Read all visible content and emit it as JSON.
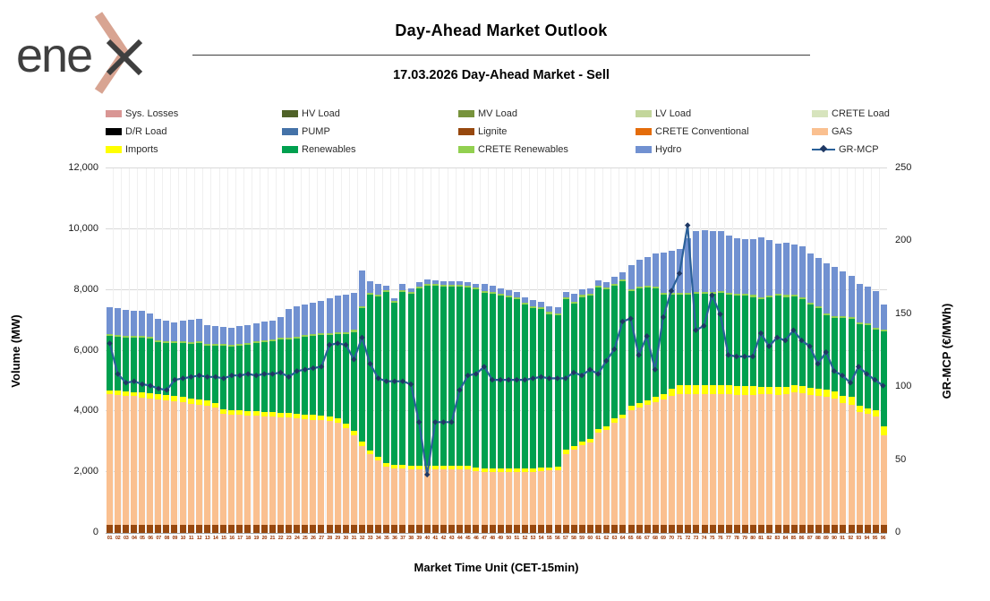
{
  "logo": {
    "text": "ene",
    "alt": "enex"
  },
  "header": {
    "title": "Day-Ahead Market Outlook",
    "subtitle": "17.03.2026  Day-Ahead Market - Sell"
  },
  "legend": [
    {
      "label": "Sys. Losses",
      "color": "#d99694",
      "type": "box"
    },
    {
      "label": "HV Load",
      "color": "#4f6228",
      "type": "box"
    },
    {
      "label": "MV Load",
      "color": "#77933c",
      "type": "box"
    },
    {
      "label": "LV Load",
      "color": "#c3d69b",
      "type": "box"
    },
    {
      "label": "CRETE Load",
      "color": "#d7e4bd",
      "type": "box"
    },
    {
      "label": "D/R Load",
      "color": "#000000",
      "type": "box"
    },
    {
      "label": "PUMP",
      "color": "#4472a8",
      "type": "box"
    },
    {
      "label": "Lignite",
      "color": "#97480e",
      "type": "box"
    },
    {
      "label": "CRETE Conventional",
      "color": "#e46c0a",
      "type": "box"
    },
    {
      "label": "GAS",
      "color": "#fac090",
      "type": "box"
    },
    {
      "label": "Imports",
      "color": "#ffff00",
      "type": "box"
    },
    {
      "label": "Renewables",
      "color": "#00a04f",
      "type": "box"
    },
    {
      "label": "CRETE Renewables",
      "color": "#92d050",
      "type": "box"
    },
    {
      "label": "Hydro",
      "color": "#7191d1",
      "type": "box"
    },
    {
      "label": "GR-MCP",
      "color": "#2a6099",
      "type": "line"
    }
  ],
  "axes": {
    "left": {
      "title": "Volume (MW)",
      "ticks": [
        "0",
        "2,000",
        "4,000",
        "6,000",
        "8,000",
        "10,000",
        "12,000"
      ],
      "max": 12000
    },
    "right": {
      "title": "GR-MCP (€/MWh)",
      "ticks": [
        "0",
        "50",
        "100",
        "150",
        "200",
        "250"
      ],
      "max": 250
    },
    "x": {
      "title": "Market Time Unit (CET-15min)"
    }
  },
  "chart_data": {
    "type": "stacked-bar+line",
    "ylim_left": [
      0,
      12000
    ],
    "ylim_right": [
      0,
      250
    ],
    "grid": "horizontal",
    "categories": [
      "01",
      "02",
      "03",
      "04",
      "05",
      "06",
      "07",
      "08",
      "09",
      "10",
      "11",
      "12",
      "13",
      "14",
      "15",
      "16",
      "17",
      "18",
      "19",
      "20",
      "21",
      "22",
      "23",
      "24",
      "25",
      "26",
      "27",
      "28",
      "29",
      "30",
      "31",
      "32",
      "33",
      "34",
      "35",
      "36",
      "37",
      "38",
      "39",
      "40",
      "41",
      "42",
      "43",
      "44",
      "45",
      "46",
      "47",
      "48",
      "49",
      "50",
      "51",
      "52",
      "53",
      "54",
      "55",
      "56",
      "57",
      "58",
      "59",
      "60",
      "61",
      "62",
      "63",
      "64",
      "65",
      "66",
      "67",
      "68",
      "69",
      "70",
      "71",
      "72",
      "73",
      "74",
      "75",
      "76",
      "77",
      "78",
      "79",
      "80",
      "81",
      "82",
      "83",
      "84",
      "85",
      "86",
      "87",
      "88",
      "89",
      "90",
      "91",
      "92",
      "93",
      "94",
      "95",
      "96"
    ],
    "series": [
      {
        "name": "Lignite",
        "color": "#97480e",
        "values": [
          280,
          280,
          280,
          280,
          280,
          280,
          280,
          280,
          280,
          280,
          280,
          280,
          280,
          280,
          280,
          280,
          280,
          280,
          280,
          280,
          280,
          280,
          280,
          280,
          280,
          280,
          280,
          280,
          280,
          280,
          280,
          280,
          280,
          280,
          280,
          280,
          280,
          280,
          280,
          280,
          280,
          280,
          280,
          280,
          280,
          280,
          280,
          280,
          280,
          280,
          280,
          280,
          280,
          280,
          280,
          280,
          280,
          280,
          280,
          280,
          280,
          280,
          280,
          280,
          280,
          280,
          280,
          280,
          280,
          280,
          280,
          280,
          280,
          280,
          280,
          280,
          280,
          280,
          280,
          280,
          280,
          280,
          280,
          280,
          280,
          280,
          280,
          280,
          280,
          280,
          280,
          280,
          280,
          280,
          280,
          280
        ]
      },
      {
        "name": "GAS",
        "color": "#fac090",
        "values": [
          4290,
          4260,
          4230,
          4220,
          4170,
          4140,
          4100,
          4070,
          4050,
          4030,
          3980,
          3950,
          3900,
          3840,
          3650,
          3620,
          3600,
          3580,
          3570,
          3560,
          3550,
          3530,
          3510,
          3490,
          3470,
          3450,
          3430,
          3410,
          3360,
          3160,
          2920,
          2590,
          2320,
          2110,
          1910,
          1850,
          1830,
          1820,
          1820,
          1820,
          1820,
          1820,
          1820,
          1820,
          1810,
          1760,
          1720,
          1720,
          1720,
          1720,
          1720,
          1730,
          1740,
          1750,
          1770,
          1790,
          2320,
          2460,
          2620,
          2700,
          3010,
          3100,
          3360,
          3500,
          3770,
          3850,
          3940,
          4040,
          4100,
          4240,
          4290,
          4290,
          4290,
          4290,
          4290,
          4290,
          4280,
          4270,
          4260,
          4250,
          4290,
          4280,
          4270,
          4290,
          4340,
          4310,
          4270,
          4240,
          4200,
          4150,
          4000,
          3950,
          3710,
          3630,
          3560,
          2930
        ]
      },
      {
        "name": "Imports",
        "color": "#ffff00",
        "values": [
          130,
          140,
          140,
          140,
          180,
          180,
          180,
          180,
          170,
          170,
          170,
          170,
          170,
          160,
          150,
          150,
          150,
          150,
          150,
          150,
          150,
          150,
          150,
          150,
          150,
          150,
          150,
          140,
          130,
          160,
          150,
          130,
          120,
          120,
          120,
          120,
          120,
          120,
          110,
          110,
          110,
          110,
          110,
          110,
          110,
          110,
          110,
          110,
          110,
          110,
          110,
          110,
          110,
          110,
          110,
          110,
          130,
          130,
          120,
          120,
          120,
          120,
          140,
          120,
          130,
          150,
          150,
          150,
          190,
          230,
          290,
          300,
          300,
          300,
          300,
          300,
          300,
          300,
          300,
          300,
          250,
          250,
          250,
          250,
          240,
          240,
          240,
          240,
          240,
          240,
          240,
          240,
          190,
          190,
          190,
          290
        ]
      },
      {
        "name": "Renewables",
        "color": "#00a04f",
        "values": [
          1780,
          1780,
          1790,
          1790,
          1790,
          1790,
          1720,
          1720,
          1740,
          1770,
          1800,
          1840,
          1820,
          1880,
          2080,
          2090,
          2140,
          2190,
          2260,
          2300,
          2340,
          2400,
          2440,
          2490,
          2560,
          2610,
          2660,
          2700,
          2780,
          2960,
          3270,
          4390,
          5120,
          5280,
          5620,
          5330,
          5700,
          5660,
          5840,
          5940,
          5940,
          5910,
          5910,
          5890,
          5870,
          5870,
          5790,
          5770,
          5690,
          5640,
          5580,
          5390,
          5280,
          5220,
          5050,
          4980,
          4960,
          4690,
          4750,
          4700,
          4660,
          4520,
          4370,
          4390,
          3770,
          3770,
          3700,
          3570,
          3260,
          3080,
          2970,
          2960,
          3000,
          3000,
          3000,
          3020,
          2970,
          2950,
          2960,
          2940,
          2890,
          2940,
          3000,
          2950,
          2930,
          2870,
          2720,
          2650,
          2440,
          2400,
          2550,
          2580,
          2690,
          2750,
          2660,
          3140
        ]
      },
      {
        "name": "CRETE Renewables",
        "color": "#92d050",
        "values": [
          60,
          60,
          60,
          60,
          60,
          60,
          60,
          60,
          60,
          60,
          60,
          60,
          60,
          60,
          60,
          60,
          60,
          60,
          60,
          60,
          60,
          60,
          60,
          60,
          60,
          60,
          60,
          60,
          60,
          60,
          60,
          60,
          60,
          60,
          60,
          60,
          60,
          60,
          60,
          60,
          60,
          60,
          60,
          60,
          60,
          60,
          60,
          60,
          60,
          60,
          60,
          60,
          60,
          60,
          60,
          60,
          60,
          60,
          60,
          60,
          60,
          60,
          60,
          60,
          60,
          60,
          60,
          60,
          60,
          60,
          60,
          60,
          60,
          60,
          60,
          60,
          60,
          60,
          60,
          60,
          60,
          60,
          60,
          60,
          60,
          60,
          60,
          60,
          60,
          60,
          60,
          60,
          60,
          60,
          60,
          60
        ]
      },
      {
        "name": "Hydro",
        "color": "#7191d1",
        "values": [
          890,
          880,
          830,
          830,
          820,
          780,
          720,
          680,
          630,
          670,
          720,
          760,
          610,
          580,
          560,
          550,
          580,
          590,
          590,
          600,
          600,
          680,
          930,
          980,
          1000,
          1020,
          1060,
          1130,
          1200,
          1220,
          1220,
          1200,
          400,
          340,
          150,
          80,
          200,
          120,
          150,
          140,
          120,
          120,
          120,
          120,
          130,
          130,
          230,
          210,
          200,
          190,
          190,
          190,
          200,
          200,
          200,
          200,
          180,
          240,
          200,
          200,
          190,
          190,
          210,
          230,
          810,
          880,
          960,
          1090,
          1350,
          1400,
          1450,
          1810,
          2000,
          2030,
          2000,
          1980,
          1900,
          1840,
          1800,
          1830,
          1960,
          1820,
          1670,
          1730,
          1650,
          1670,
          1620,
          1570,
          1670,
          1620,
          1490,
          1340,
          1280,
          1200,
          1210,
          820
        ]
      }
    ],
    "line": {
      "name": "GR-MCP",
      "axis": "right",
      "color": "#2a6099",
      "marker_color": "#1f3864",
      "values": [
        130,
        109,
        103,
        104,
        102,
        101,
        99,
        98,
        105,
        106,
        107,
        108,
        107,
        107,
        106,
        108,
        108,
        109,
        108,
        109,
        109,
        110,
        107,
        111,
        112,
        113,
        114,
        129,
        130,
        129,
        119,
        134,
        116,
        106,
        104,
        104,
        104,
        102,
        76,
        40,
        76,
        76,
        76,
        98,
        108,
        109,
        114,
        105,
        105,
        105,
        105,
        105,
        106,
        107,
        106,
        106,
        106,
        110,
        108,
        112,
        109,
        118,
        126,
        145,
        147,
        122,
        135,
        112,
        148,
        166,
        178,
        211,
        139,
        142,
        163,
        150,
        122,
        121,
        121,
        121,
        137,
        128,
        134,
        132,
        139,
        132,
        128,
        116,
        124,
        111,
        108,
        103,
        114,
        109,
        105,
        101
      ]
    }
  }
}
